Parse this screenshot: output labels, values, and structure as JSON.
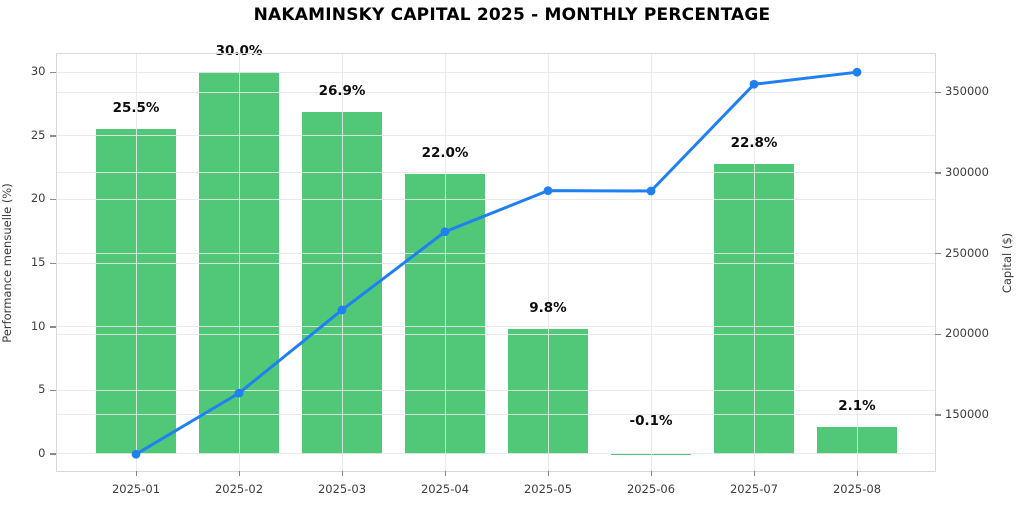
{
  "chart_data": {
    "type": "combo",
    "title": "NAKAMINSKY CAPITAL 2025 - MONTHLY PERCENTAGE",
    "categories": [
      "2025-01",
      "2025-02",
      "2025-03",
      "2025-04",
      "2025-05",
      "2025-06",
      "2025-07",
      "2025-08"
    ],
    "series": [
      {
        "name": "Performance mensuelle (%)",
        "type": "bar",
        "axis": "left",
        "values": [
          25.5,
          30.0,
          26.9,
          22.0,
          9.8,
          -0.1,
          22.8,
          2.1
        ],
        "point_labels": [
          "25.5%",
          "30.0%",
          "26.9%",
          "22.0%",
          "9.8%",
          "-0.1%",
          "22.8%",
          "2.1%"
        ],
        "color": "#50c878"
      },
      {
        "name": "Capital ($)",
        "type": "line",
        "axis": "right",
        "values": [
          125500,
          163400,
          215000,
          263500,
          289000,
          288800,
          355000,
          362500
        ],
        "color": "#1e80f3"
      }
    ],
    "left_axis": {
      "label": "Performance mensuelle (%)",
      "ticks": [
        0,
        5,
        10,
        15,
        20,
        25,
        30
      ],
      "min": -1.3,
      "max": 31.5
    },
    "right_axis": {
      "label": "Capital ($)",
      "ticks": [
        150000,
        200000,
        250000,
        300000,
        350000
      ],
      "min": 115400,
      "max": 374400
    },
    "grid": true,
    "legend_position": "none"
  },
  "colors": {
    "bar": "#50c878",
    "line": "#1e80f3",
    "grid": "#e7e7e7",
    "spine": "#d8d8d8",
    "tick_text": "#3d3d3d",
    "title_text": "#000000",
    "data_label_text": "#0d0d0d",
    "background": "#ffffff"
  }
}
